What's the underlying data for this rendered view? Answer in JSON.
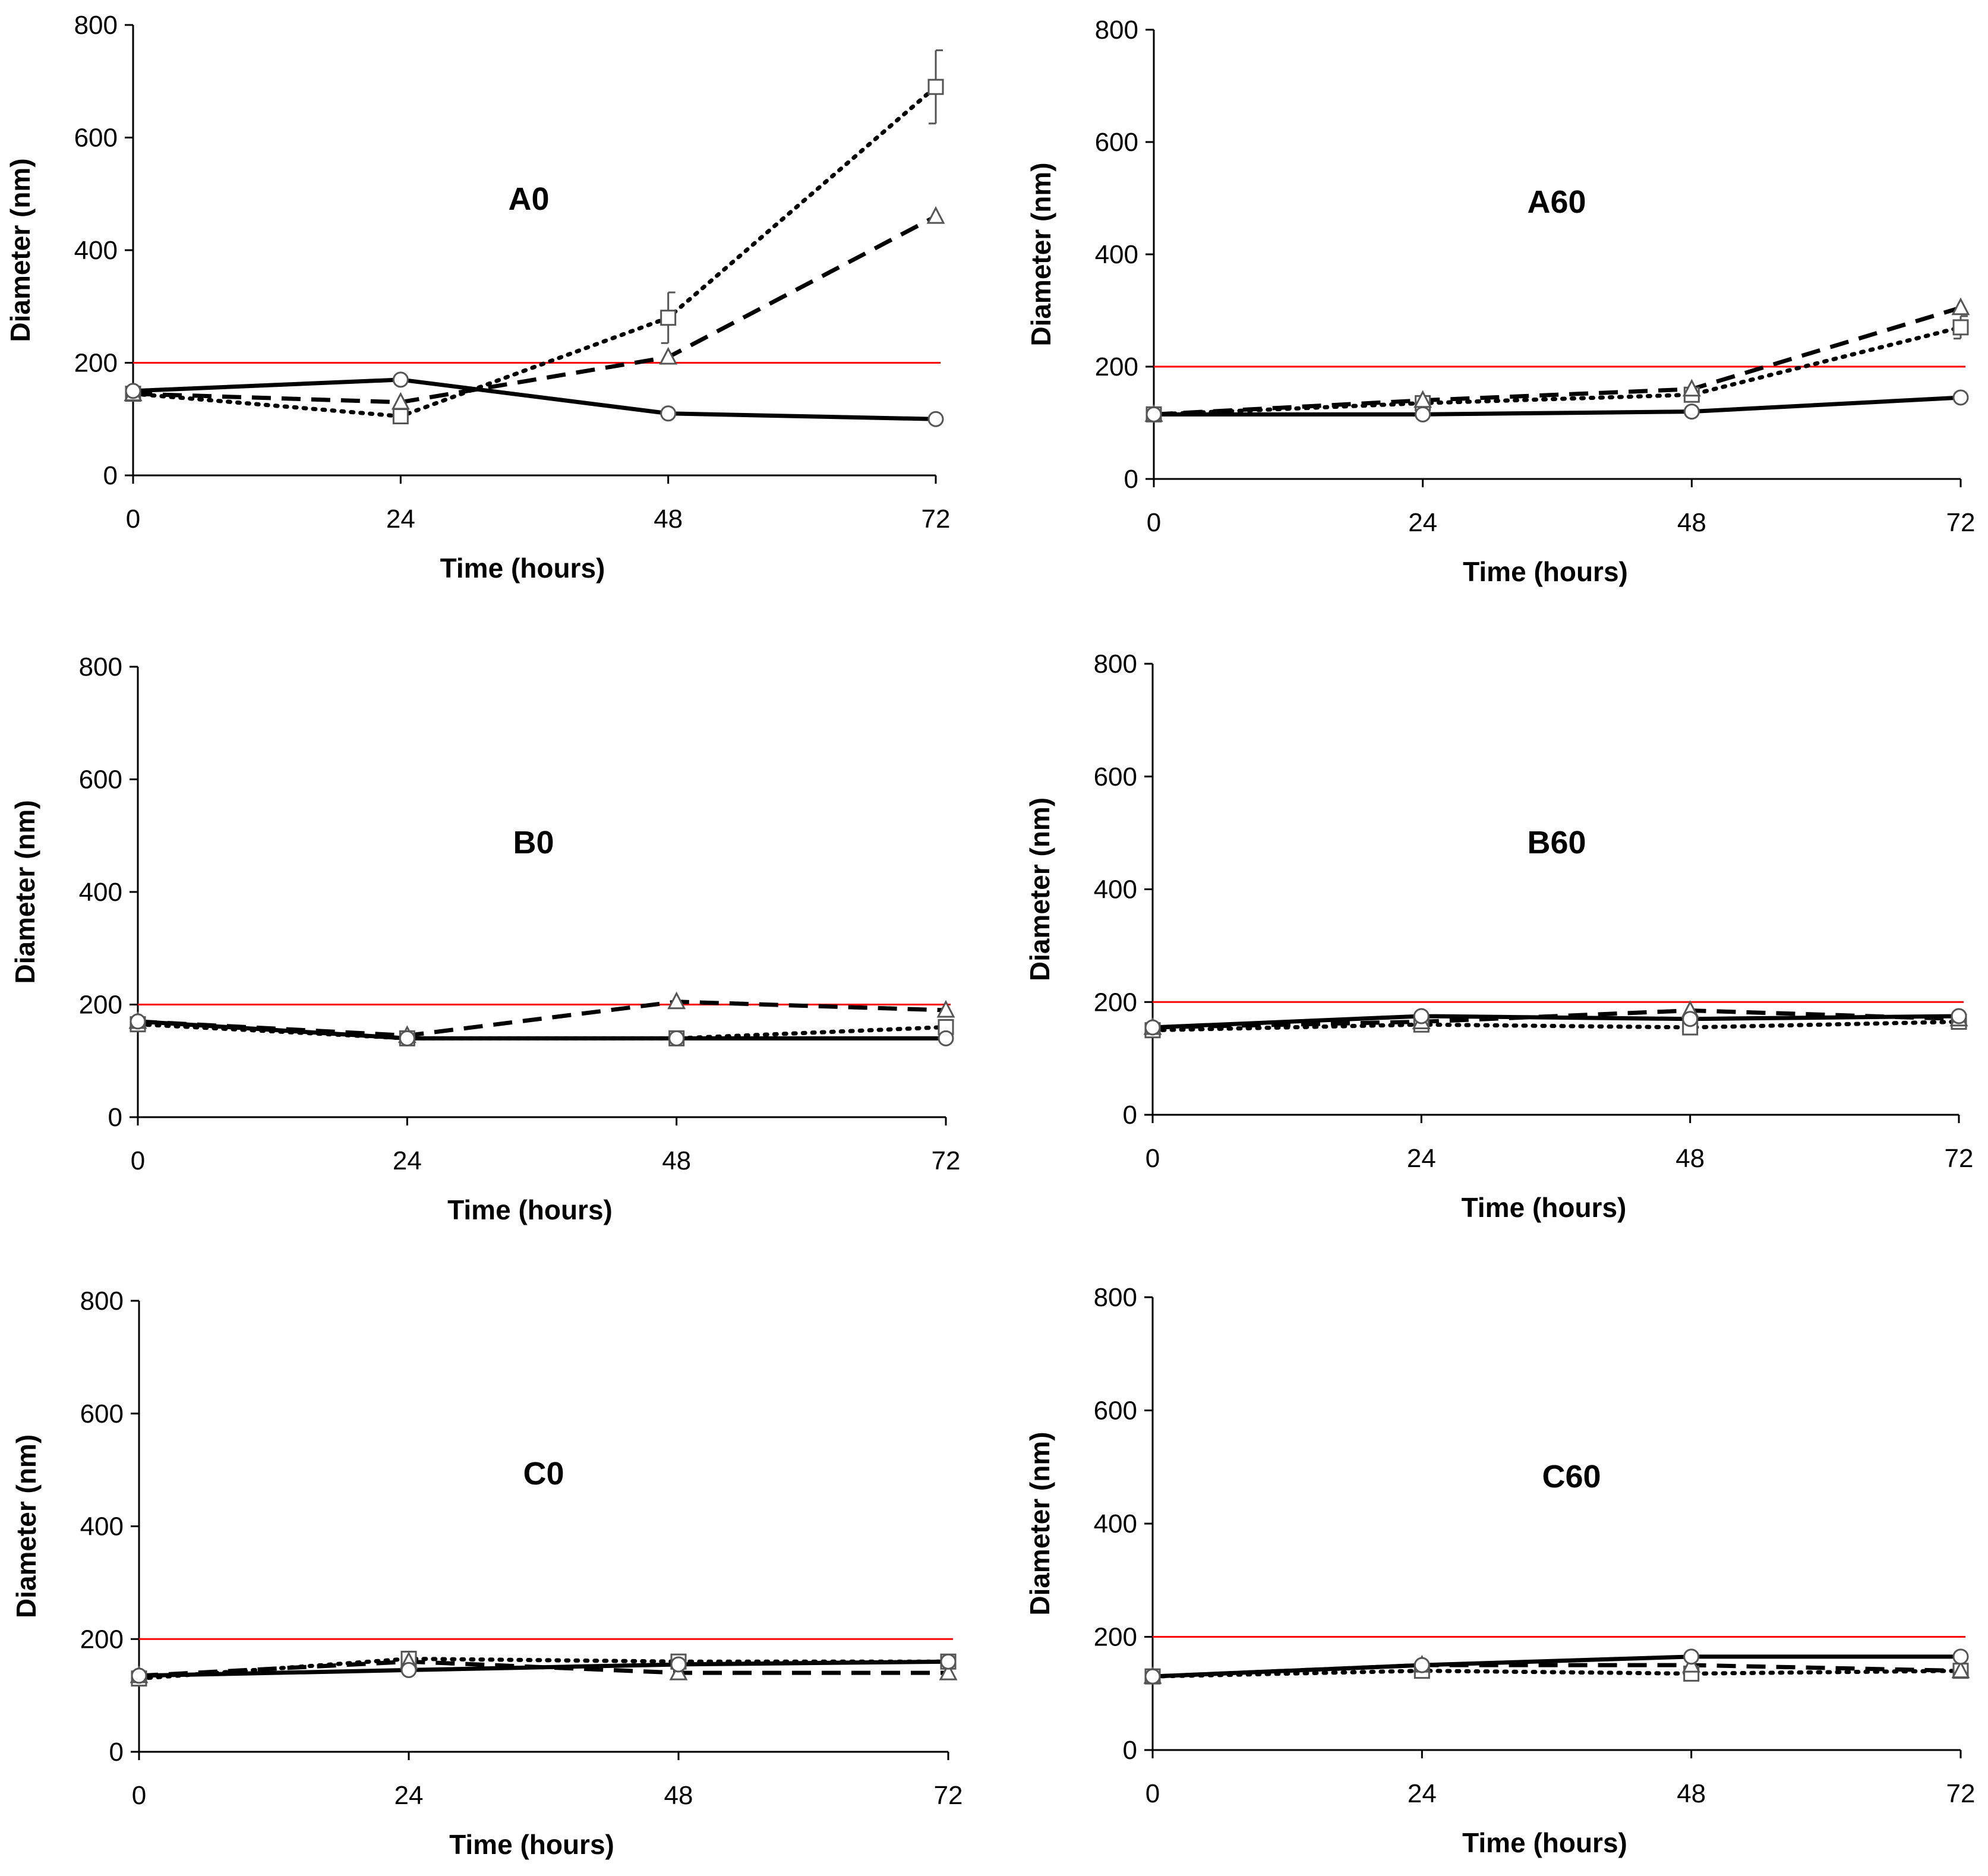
{
  "chart_data": [
    {
      "type": "line",
      "title": "A0",
      "xlabel": "Time (hours)",
      "ylabel": "Diameter (nm)",
      "x": [
        0,
        24,
        48,
        72
      ],
      "xticks": [
        "0",
        "24",
        "48",
        "72"
      ],
      "yticks": [
        "0",
        "200",
        "400",
        "600",
        "800"
      ],
      "ylim": [
        0,
        800
      ],
      "reference_line": {
        "y": 200,
        "color": "#ff0000"
      },
      "series": [
        {
          "name": "circle-solid",
          "marker": "circle",
          "style": "solid",
          "values": [
            150,
            170,
            110,
            100
          ]
        },
        {
          "name": "triangle-dashed",
          "marker": "triangle",
          "style": "dashed",
          "values": [
            145,
            130,
            210,
            460
          ]
        },
        {
          "name": "square-dotted",
          "marker": "square",
          "style": "dotted",
          "values": [
            145,
            105,
            280,
            690
          ],
          "errors": [
            0,
            0,
            45,
            65
          ]
        }
      ]
    },
    {
      "type": "line",
      "title": "A60",
      "xlabel": "Time (hours)",
      "ylabel": "Diameter (nm)",
      "x": [
        0,
        24,
        48,
        72
      ],
      "xticks": [
        "0",
        "24",
        "48",
        "72"
      ],
      "yticks": [
        "0",
        "200",
        "400",
        "600",
        "800"
      ],
      "ylim": [
        0,
        800
      ],
      "reference_line": {
        "y": 200,
        "color": "#ff0000"
      },
      "series": [
        {
          "name": "circle-solid",
          "marker": "circle",
          "style": "solid",
          "values": [
            115,
            115,
            120,
            145
          ]
        },
        {
          "name": "triangle-dashed",
          "marker": "triangle",
          "style": "dashed",
          "values": [
            115,
            140,
            160,
            305
          ]
        },
        {
          "name": "square-dotted",
          "marker": "square",
          "style": "dotted",
          "values": [
            115,
            135,
            150,
            270
          ],
          "errors": [
            0,
            0,
            0,
            20
          ]
        }
      ]
    },
    {
      "type": "line",
      "title": "B0",
      "xlabel": "Time (hours)",
      "ylabel": "Diameter (nm)",
      "x": [
        0,
        24,
        48,
        72
      ],
      "xticks": [
        "0",
        "24",
        "48",
        "72"
      ],
      "yticks": [
        "0",
        "200",
        "400",
        "600",
        "800"
      ],
      "ylim": [
        0,
        800
      ],
      "reference_line": {
        "y": 200,
        "color": "#ff0000"
      },
      "series": [
        {
          "name": "circle-solid",
          "marker": "circle",
          "style": "solid",
          "values": [
            170,
            140,
            140,
            140
          ]
        },
        {
          "name": "triangle-dashed",
          "marker": "triangle",
          "style": "dashed",
          "values": [
            170,
            145,
            205,
            190
          ]
        },
        {
          "name": "square-dotted",
          "marker": "square",
          "style": "dotted",
          "values": [
            165,
            140,
            140,
            160
          ]
        }
      ]
    },
    {
      "type": "line",
      "title": "B60",
      "xlabel": "Time (hours)",
      "ylabel": "Diameter (nm)",
      "x": [
        0,
        24,
        48,
        72
      ],
      "xticks": [
        "0",
        "24",
        "48",
        "72"
      ],
      "yticks": [
        "0",
        "200",
        "400",
        "600",
        "800"
      ],
      "ylim": [
        0,
        800
      ],
      "reference_line": {
        "y": 200,
        "color": "#ff0000"
      },
      "series": [
        {
          "name": "circle-solid",
          "marker": "circle",
          "style": "solid",
          "values": [
            155,
            175,
            170,
            175
          ]
        },
        {
          "name": "triangle-dashed",
          "marker": "triangle",
          "style": "dashed",
          "values": [
            155,
            165,
            185,
            170
          ]
        },
        {
          "name": "square-dotted",
          "marker": "square",
          "style": "dotted",
          "values": [
            150,
            160,
            155,
            165
          ]
        }
      ]
    },
    {
      "type": "line",
      "title": "C0",
      "xlabel": "Time (hours)",
      "ylabel": "Diameter (nm)",
      "x": [
        0,
        24,
        48,
        72
      ],
      "xticks": [
        "0",
        "24",
        "48",
        "72"
      ],
      "yticks": [
        "0",
        "200",
        "400",
        "600",
        "800"
      ],
      "ylim": [
        0,
        800
      ],
      "reference_line": {
        "y": 200,
        "color": "#ff0000"
      },
      "series": [
        {
          "name": "circle-solid",
          "marker": "circle",
          "style": "solid",
          "values": [
            135,
            145,
            155,
            160
          ]
        },
        {
          "name": "triangle-dashed",
          "marker": "triangle",
          "style": "dashed",
          "values": [
            135,
            160,
            140,
            140
          ]
        },
        {
          "name": "square-dotted",
          "marker": "square",
          "style": "dotted",
          "values": [
            130,
            165,
            160,
            160
          ]
        }
      ]
    },
    {
      "type": "line",
      "title": "C60",
      "xlabel": "Time (hours)",
      "ylabel": "Diameter (nm)",
      "x": [
        0,
        24,
        48,
        72
      ],
      "xticks": [
        "0",
        "24",
        "48",
        "72"
      ],
      "yticks": [
        "0",
        "200",
        "400",
        "600",
        "800"
      ],
      "ylim": [
        0,
        800
      ],
      "reference_line": {
        "y": 200,
        "color": "#ff0000"
      },
      "series": [
        {
          "name": "circle-solid",
          "marker": "circle",
          "style": "solid",
          "values": [
            130,
            150,
            165,
            165
          ]
        },
        {
          "name": "triangle-dashed",
          "marker": "triangle",
          "style": "dashed",
          "values": [
            130,
            150,
            150,
            140
          ]
        },
        {
          "name": "square-dotted",
          "marker": "square",
          "style": "dotted",
          "values": [
            130,
            140,
            135,
            140
          ]
        }
      ]
    }
  ]
}
